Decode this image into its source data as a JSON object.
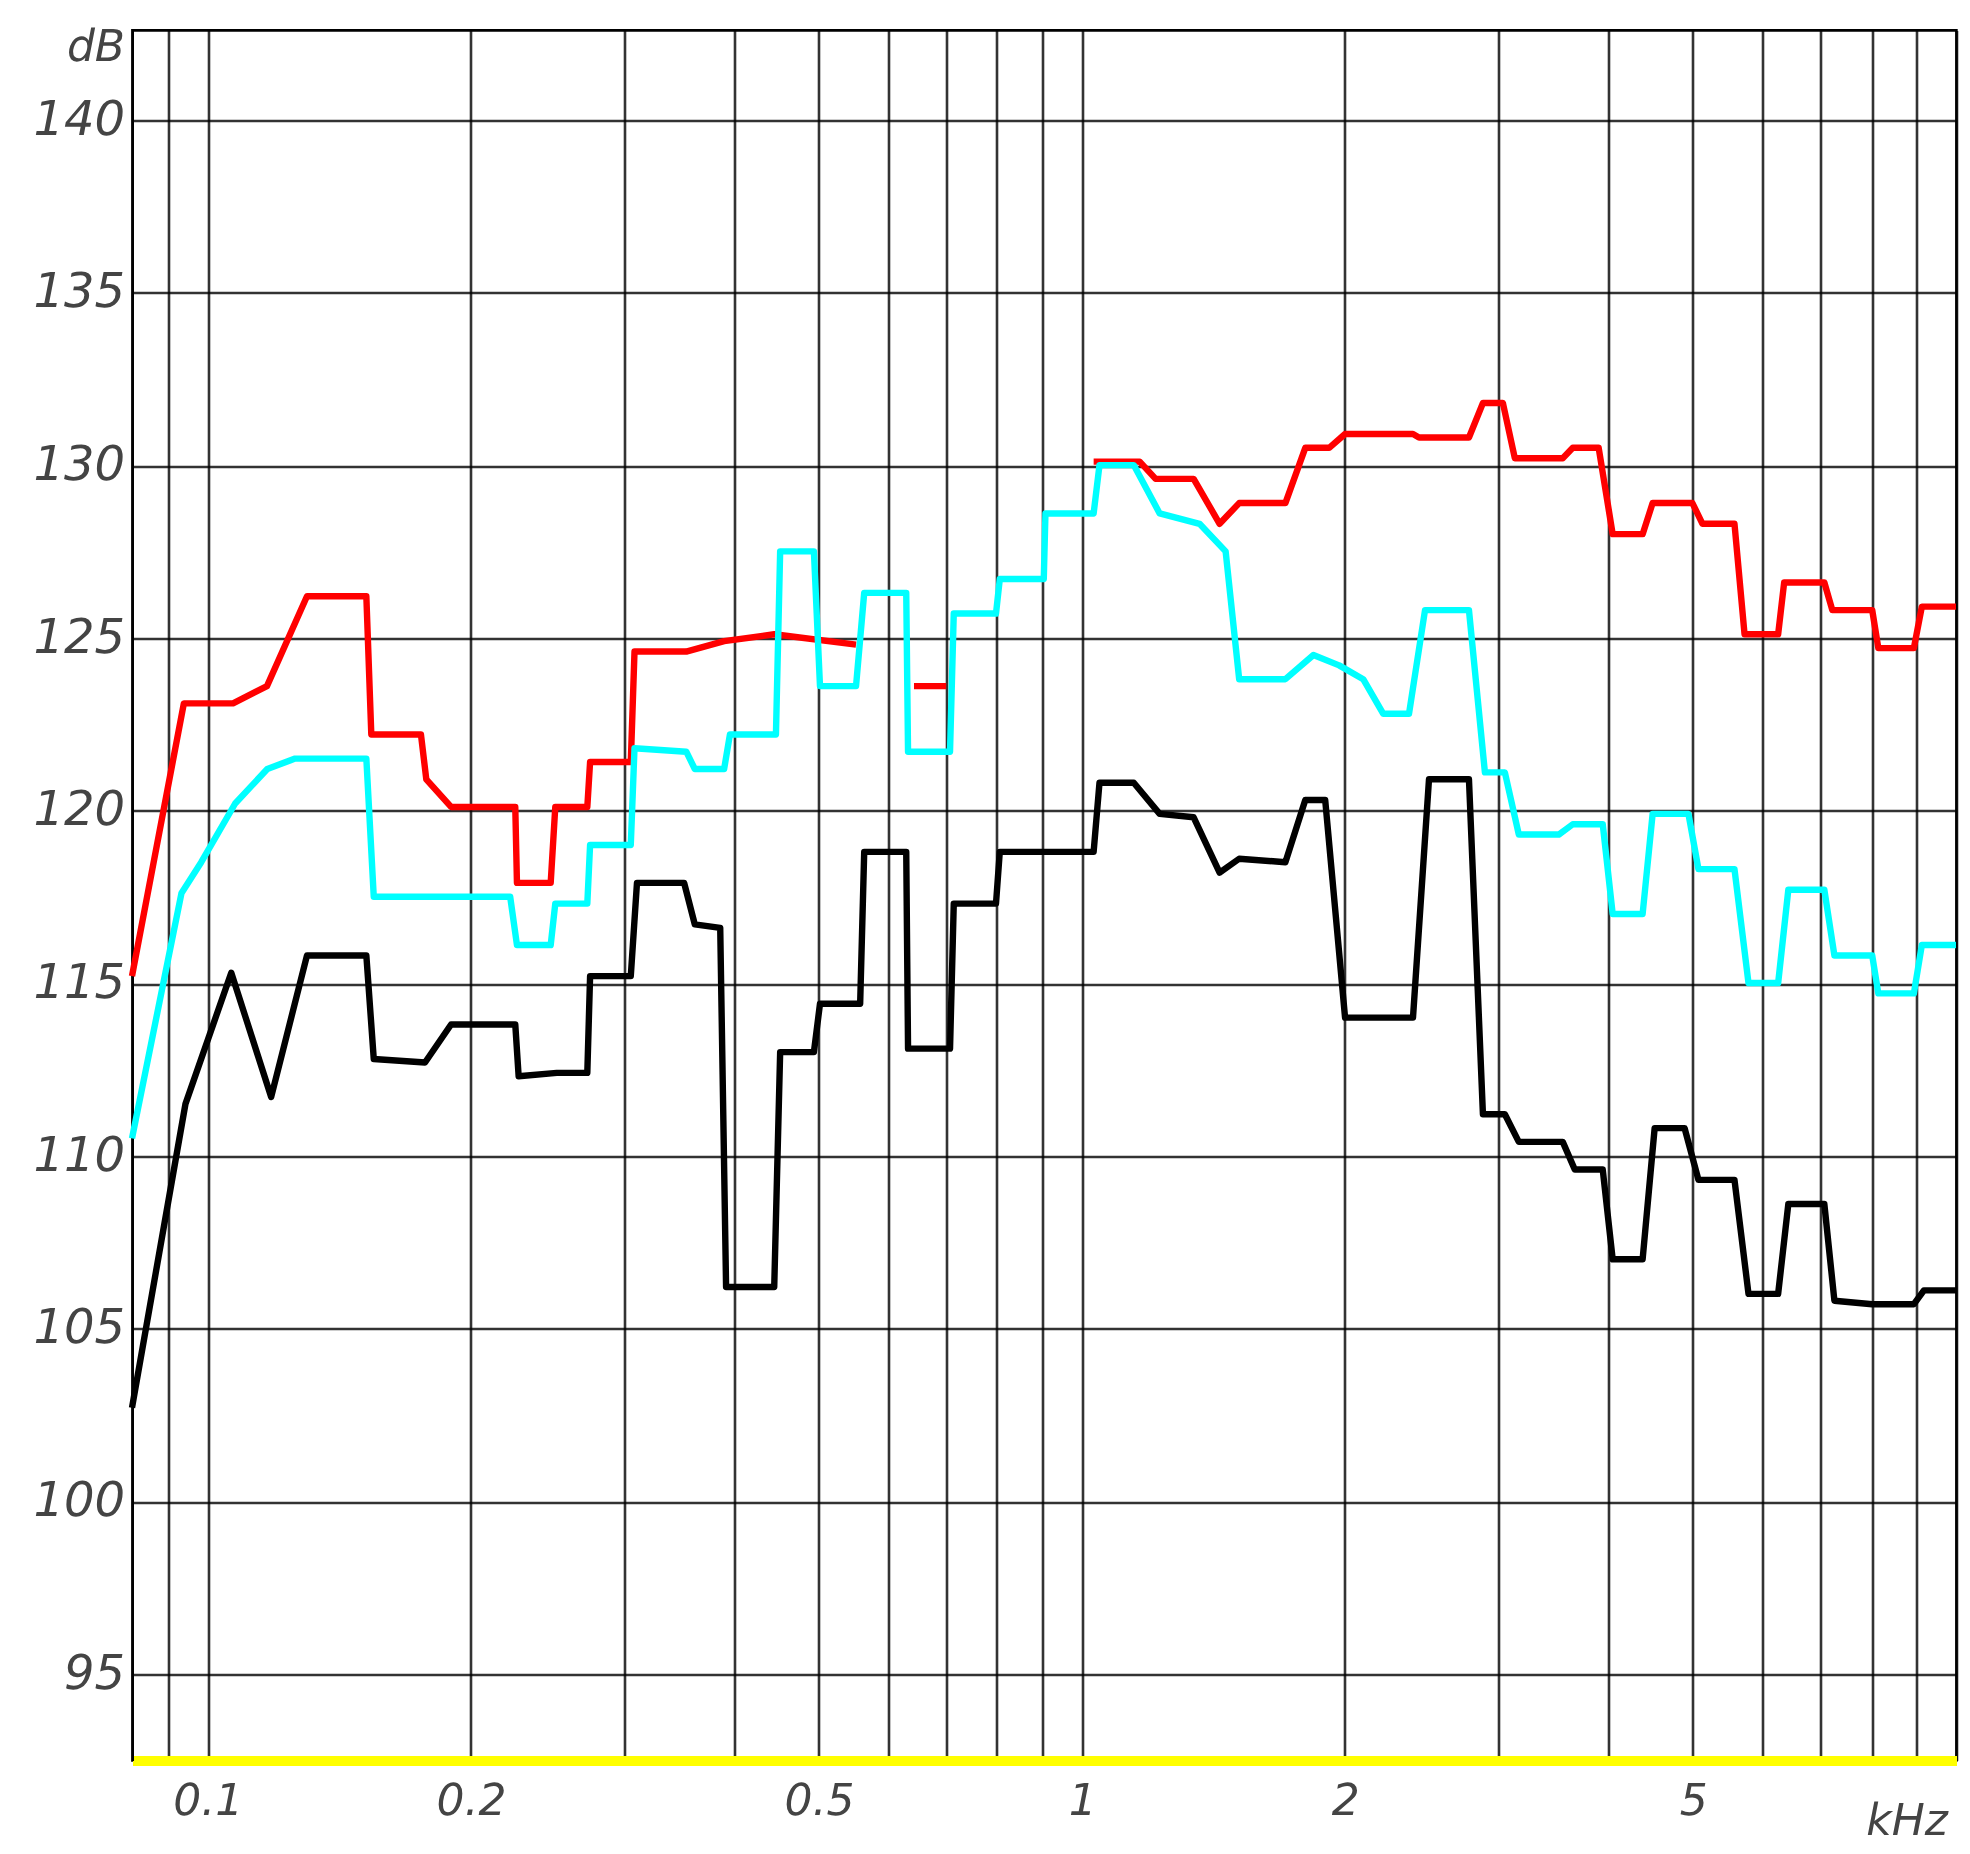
{
  "chart_data": {
    "type": "line",
    "xlabel": "kHz",
    "ylabel": "dB",
    "log": "x",
    "grid": true,
    "xlim": [
      0.082,
      10
    ],
    "ylim": [
      92.5,
      142.6
    ],
    "xticks": [
      {
        "value": 0.09,
        "label": null
      },
      0.1,
      0.2,
      {
        "value": 0.3,
        "label": null
      },
      {
        "value": 0.4,
        "label": null
      },
      0.5,
      {
        "value": 0.6,
        "label": null
      },
      {
        "value": 0.7,
        "label": null
      },
      {
        "value": 0.8,
        "label": null
      },
      {
        "value": 0.9,
        "label": null
      },
      1,
      2,
      {
        "value": 3,
        "label": null
      },
      {
        "value": 4,
        "label": null
      },
      5,
      {
        "value": 6,
        "label": null
      },
      {
        "value": 7,
        "label": null
      },
      {
        "value": 8,
        "label": null
      },
      {
        "value": 9,
        "label": null
      },
      {
        "value": 10,
        "label": null
      }
    ],
    "yticks": [
      95,
      100,
      105,
      110,
      115,
      120,
      125,
      130,
      135,
      140
    ],
    "series": [
      {
        "color": "#ff0000",
        "x": [
          0.082,
          0.094,
          0.107,
          0.117,
          0.13,
          0.152,
          0.154,
          0.1755,
          0.178,
          0.19,
          0.225,
          0.226,
          0.247,
          0.25,
          0.272,
          0.274,
          0.305,
          0.308,
          0.353,
          0.39,
          0.445,
          0.552,
          0.6,
          0.643,
          0.7,
          0.85,
          1.032,
          1.165,
          1.215,
          1.343,
          1.438,
          1.514,
          1.71,
          1.802,
          1.919,
          2.001,
          2.393,
          2.431,
          2.773,
          2.877,
          3.032,
          3.129,
          3.55,
          3.645,
          3.902,
          4.049,
          4.381,
          4.498,
          4.995,
          5.129,
          5.58,
          5.73,
          6.26,
          6.36,
          7.07,
          7.22,
          8.02,
          8.15,
          8.95,
          9.14,
          10
        ],
        "values": [
          115.2,
          123.1,
          123.1,
          123.6,
          126.2,
          126.2,
          122.2,
          122.2,
          120.9,
          120.1,
          120.1,
          117.9,
          117.9,
          120.1,
          120.1,
          121.4,
          121.4,
          124.6,
          124.6,
          124.9,
          125.1,
          124.8,
          null,
          123.6,
          123.6,
          null,
          130.1,
          130.1,
          129.6,
          129.6,
          128.3,
          128.9,
          128.9,
          130.5,
          130.5,
          130.9,
          130.9,
          130.8,
          130.8,
          131.8,
          131.8,
          130.2,
          130.2,
          130.5,
          130.5,
          128.0,
          128.0,
          128.9,
          128.9,
          128.3,
          128.3,
          125.1,
          125.1,
          126.6,
          126.6,
          125.8,
          125.8,
          124.7,
          124.7,
          125.9,
          125.9
        ]
      },
      {
        "color": "#00ffff",
        "x": [
          0.082,
          0.0934,
          0.0984,
          0.1076,
          0.1171,
          0.126,
          0.152,
          0.155,
          0.1774,
          0.222,
          0.226,
          0.247,
          0.25,
          0.272,
          0.274,
          0.305,
          0.308,
          0.353,
          0.361,
          0.39,
          0.396,
          0.447,
          0.452,
          0.494,
          0.502,
          0.552,
          0.564,
          0.63,
          0.633,
          0.707,
          0.714,
          0.798,
          0.806,
          0.905,
          0.909,
          1.032,
          1.048,
          1.147,
          1.228,
          1.364,
          1.461,
          1.514,
          1.71,
          1.841,
          1.97,
          2.099,
          2.212,
          2.368,
          2.47,
          2.773,
          2.892,
          3.048,
          3.162,
          3.513,
          3.645,
          3.944,
          4.049,
          4.381,
          4.498,
          4.943,
          5.075,
          5.58,
          5.79,
          6.26,
          6.43,
          7.07,
          7.26,
          8.02,
          8.15,
          8.95,
          9.14,
          10
        ],
        "values": [
          110.5,
          117.6,
          118.5,
          120.2,
          121.2,
          121.5,
          121.5,
          117.5,
          117.5,
          117.5,
          116.1,
          116.1,
          117.3,
          117.3,
          119.0,
          119.0,
          121.8,
          121.7,
          121.2,
          121.2,
          122.2,
          122.2,
          127.5,
          127.5,
          123.6,
          123.6,
          126.3,
          126.3,
          121.7,
          121.7,
          125.7,
          125.7,
          126.7,
          126.7,
          128.6,
          128.6,
          130.0,
          130.0,
          128.6,
          128.3,
          127.5,
          123.8,
          123.8,
          124.5,
          124.2,
          123.8,
          122.8,
          122.8,
          125.8,
          125.8,
          121.1,
          121.1,
          119.3,
          119.3,
          119.6,
          119.6,
          117.0,
          117.0,
          119.9,
          119.9,
          118.3,
          118.3,
          115.0,
          115.0,
          117.7,
          117.7,
          115.8,
          115.8,
          114.7,
          114.7,
          116.1,
          116.1
        ]
      },
      {
        "color": "#000000",
        "x": [
          0.082,
          0.0944,
          0.1065,
          0.1183,
          0.13,
          0.152,
          0.155,
          0.1774,
          0.19,
          0.225,
          0.227,
          0.251,
          0.272,
          0.274,
          0.305,
          0.31,
          0.351,
          0.361,
          0.386,
          0.392,
          0.445,
          0.452,
          0.494,
          0.502,
          0.558,
          0.564,
          0.63,
          0.633,
          0.707,
          0.714,
          0.798,
          0.806,
          1.032,
          1.048,
          1.147,
          1.228,
          1.343,
          1.438,
          1.514,
          1.71,
          1.802,
          1.899,
          2.001,
          2.393,
          2.496,
          2.773,
          2.877,
          3.048,
          3.162,
          3.55,
          3.664,
          3.944,
          4.049,
          4.381,
          4.522,
          4.893,
          5.075,
          5.58,
          5.79,
          6.26,
          6.43,
          7.07,
          7.26,
          8.02,
          8.95,
          9.19,
          10
        ],
        "values": [
          102.7,
          111.5,
          115.3,
          111.7,
          115.8,
          115.8,
          112.8,
          112.7,
          113.8,
          113.8,
          112.3,
          112.4,
          112.4,
          115.2,
          115.2,
          117.9,
          117.9,
          116.7,
          116.6,
          106.2,
          106.2,
          113.0,
          113.0,
          114.4,
          114.4,
          118.8,
          118.8,
          113.1,
          113.1,
          117.3,
          117.3,
          118.8,
          118.8,
          120.8,
          120.8,
          119.9,
          119.8,
          118.2,
          118.6,
          118.5,
          120.3,
          120.3,
          114.0,
          114.0,
          120.9,
          120.9,
          111.2,
          111.2,
          110.4,
          110.4,
          109.6,
          109.6,
          107.0,
          107.0,
          110.8,
          110.8,
          109.3,
          109.3,
          106.0,
          106.0,
          108.6,
          108.6,
          105.8,
          105.7,
          105.7,
          106.1,
          106.1
        ]
      }
    ]
  }
}
